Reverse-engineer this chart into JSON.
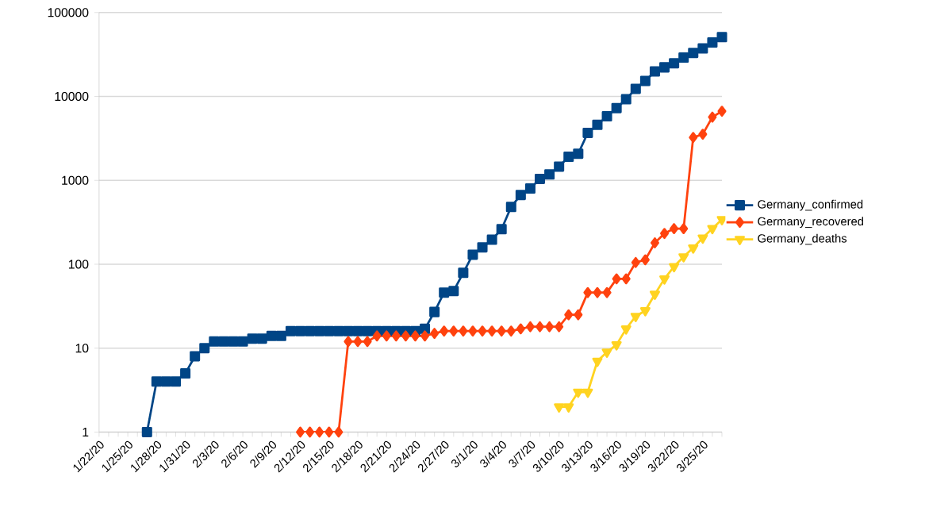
{
  "chart_data": {
    "type": "line",
    "log": "y",
    "grid": "y",
    "legend": "right",
    "categories": [
      "1/22/20",
      null,
      null,
      "1/25/20",
      null,
      null,
      "1/28/20",
      null,
      null,
      "1/31/20",
      null,
      null,
      "2/3/20",
      null,
      null,
      "2/6/20",
      null,
      null,
      "2/9/20",
      null,
      null,
      "2/12/20",
      null,
      null,
      "2/15/20",
      null,
      null,
      "2/18/20",
      null,
      null,
      "2/21/20",
      null,
      null,
      "2/24/20",
      null,
      null,
      "2/27/20",
      null,
      null,
      "3/1/20",
      null,
      null,
      "3/4/20",
      null,
      null,
      "3/7/20",
      null,
      null,
      "3/10/20",
      null,
      null,
      "3/13/20",
      null,
      null,
      "3/16/20",
      null,
      null,
      "3/19/20",
      null,
      null,
      "3/22/20",
      null,
      null,
      "3/25/20",
      null,
      null
    ],
    "ylim": [
      1,
      100000
    ],
    "yticks": [
      1,
      10,
      100,
      1000,
      10000,
      100000
    ],
    "series": [
      {
        "name": "Germany_confirmed",
        "color": "#004586",
        "marker": "square",
        "values": [
          null,
          null,
          null,
          null,
          null,
          1,
          4,
          4,
          4,
          5,
          8,
          10,
          12,
          12,
          12,
          12,
          13,
          13,
          14,
          14,
          16,
          16,
          16,
          16,
          16,
          16,
          16,
          16,
          16,
          16,
          16,
          16,
          16,
          16,
          17,
          27,
          46,
          48,
          79,
          130,
          159,
          196,
          262,
          482,
          670,
          799,
          1040,
          1176,
          1457,
          1908,
          2078,
          3675,
          4585,
          5795,
          7272,
          9257,
          12327,
          15320,
          19848,
          22213,
          24873,
          29056,
          32986,
          37323,
          43938,
          50871
        ]
      },
      {
        "name": "Germany_recovered",
        "color": "#ff420e",
        "marker": "diamond",
        "values": [
          null,
          null,
          null,
          null,
          null,
          null,
          null,
          null,
          null,
          null,
          null,
          null,
          null,
          null,
          null,
          null,
          null,
          null,
          null,
          null,
          null,
          1,
          1,
          1,
          1,
          1,
          12,
          12,
          12,
          14,
          14,
          14,
          14,
          14,
          14,
          15,
          16,
          16,
          16,
          16,
          16,
          16,
          16,
          16,
          17,
          18,
          18,
          18,
          18,
          25,
          25,
          46,
          46,
          46,
          67,
          67,
          105,
          113,
          180,
          233,
          266,
          266,
          3243,
          3547,
          5673,
          6658
        ]
      },
      {
        "name": "Germany_deaths",
        "color": "#ffd320",
        "marker": "triangle",
        "values": [
          null,
          null,
          null,
          null,
          null,
          null,
          null,
          null,
          null,
          null,
          null,
          null,
          null,
          null,
          null,
          null,
          null,
          null,
          null,
          null,
          null,
          null,
          null,
          null,
          null,
          null,
          null,
          null,
          null,
          null,
          null,
          null,
          null,
          null,
          null,
          null,
          null,
          null,
          null,
          null,
          null,
          null,
          null,
          null,
          null,
          null,
          null,
          null,
          2,
          2,
          3,
          3,
          7,
          9,
          11,
          17,
          24,
          28,
          44,
          67,
          94,
          123,
          157,
          206,
          267,
          342
        ]
      }
    ]
  }
}
